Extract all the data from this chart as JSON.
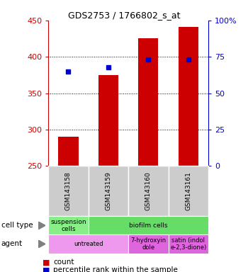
{
  "title": "GDS2753 / 1766802_s_at",
  "samples": [
    "GSM143158",
    "GSM143159",
    "GSM143160",
    "GSM143161"
  ],
  "counts": [
    290,
    375,
    425,
    441
  ],
  "percentile_ranks": [
    65,
    68,
    73,
    73
  ],
  "ylim_left": [
    250,
    450
  ],
  "ylim_right": [
    0,
    100
  ],
  "yticks_left": [
    250,
    300,
    350,
    400,
    450
  ],
  "yticks_right": [
    0,
    25,
    50,
    75,
    100
  ],
  "yticklabels_right": [
    "0",
    "25",
    "50",
    "75",
    "100%"
  ],
  "bar_color": "#cc0000",
  "dot_color": "#0000cc",
  "bar_width": 0.5,
  "cell_type_row": [
    {
      "label": "suspension\ncells",
      "color": "#88ee88",
      "span": 1
    },
    {
      "label": "biofilm cells",
      "color": "#66dd66",
      "span": 3
    }
  ],
  "agent_row": [
    {
      "label": "untreated",
      "color": "#ee99ee",
      "span": 2
    },
    {
      "label": "7-hydroxyin\ndole",
      "color": "#dd66dd",
      "span": 1
    },
    {
      "label": "satin (indol\ne-2,3-dione)",
      "color": "#dd66dd",
      "span": 1
    }
  ],
  "left_label_cell_type": "cell type",
  "left_label_agent": "agent",
  "legend_count_label": "count",
  "legend_pct_label": "percentile rank within the sample",
  "left_axis_color": "#cc0000",
  "right_axis_color": "#0000cc",
  "background_color": "#ffffff",
  "plot_bg_color": "#ffffff"
}
